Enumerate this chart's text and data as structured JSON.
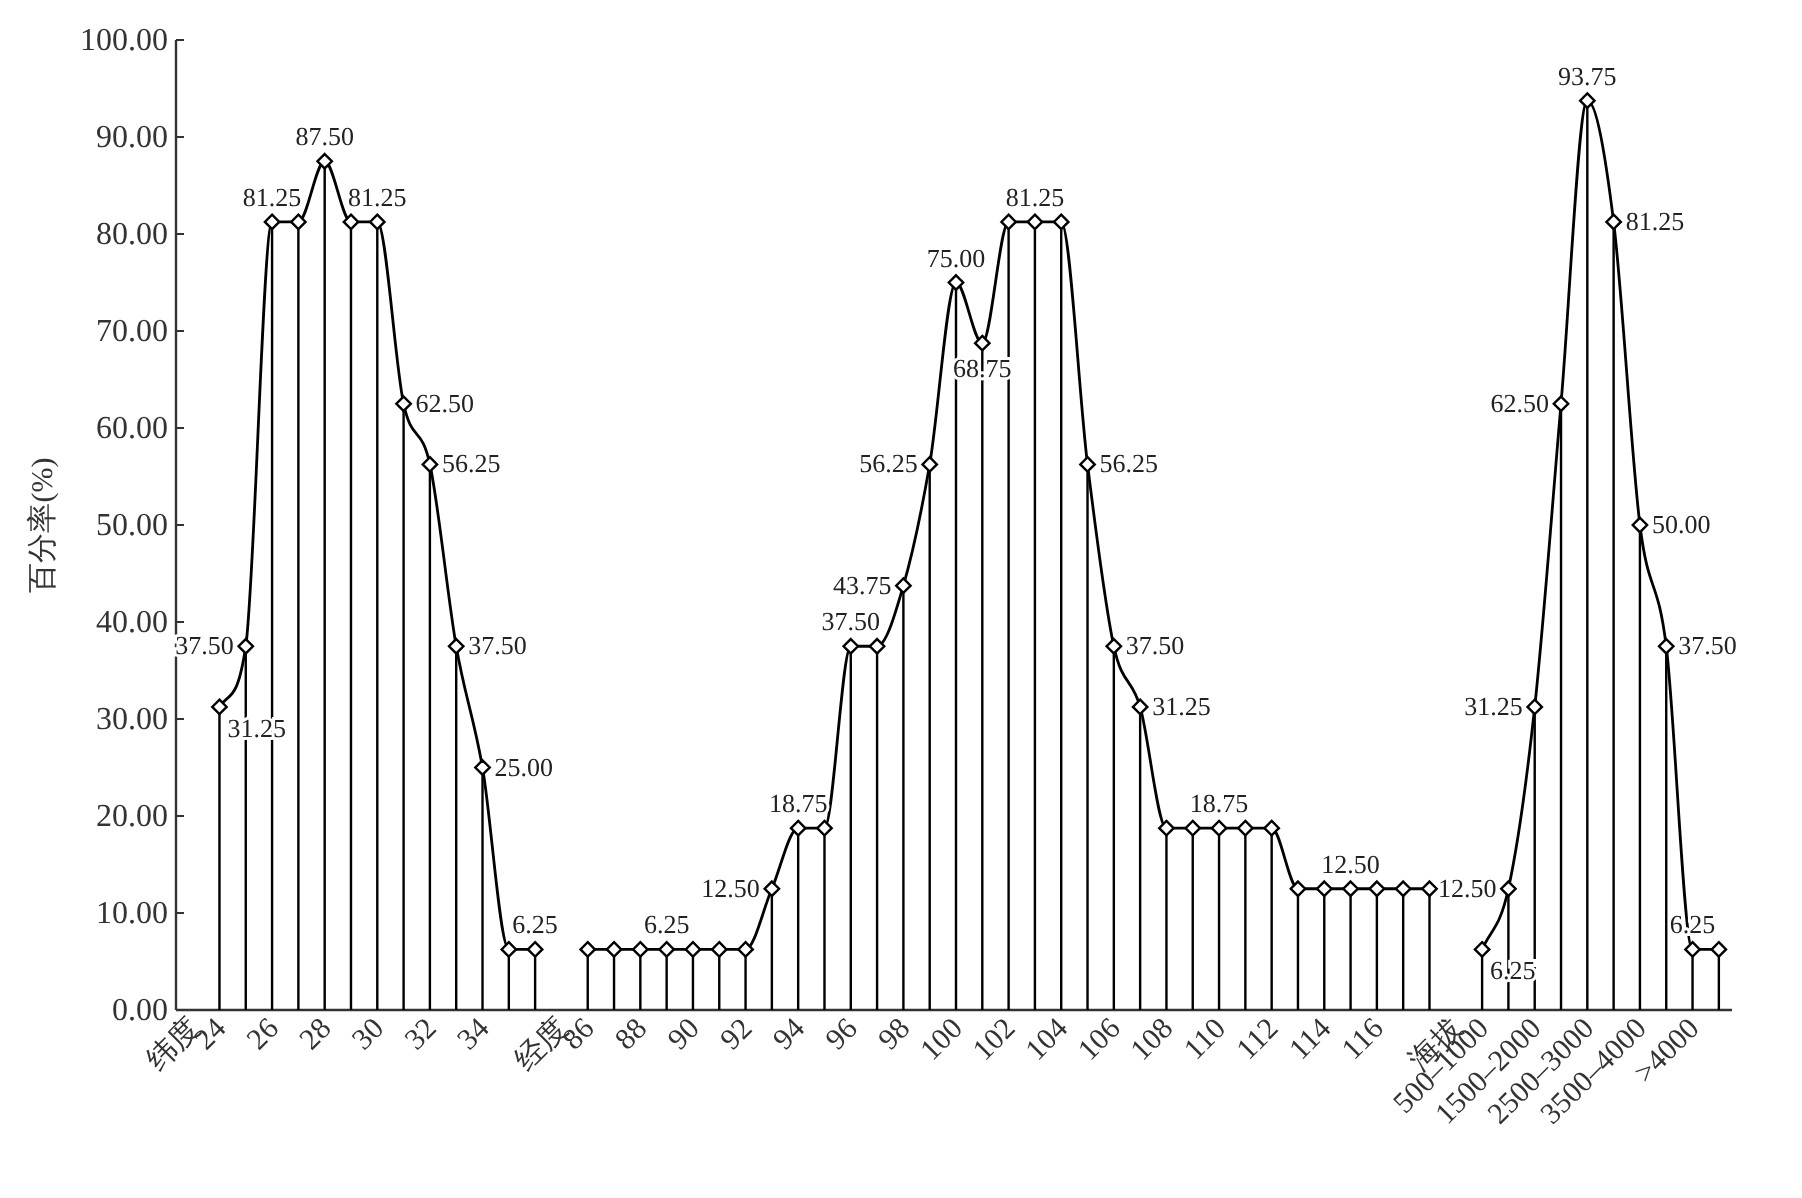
{
  "chart_data": {
    "type": "line",
    "ylabel": "百分率(%)",
    "categories": [
      "纬度",
      "24",
      null,
      "26",
      null,
      "28",
      null,
      "30",
      null,
      "32",
      null,
      "34",
      null,
      null,
      "经度",
      "86",
      null,
      "88",
      null,
      "90",
      null,
      "92",
      null,
      "94",
      null,
      "96",
      null,
      "98",
      null,
      "100",
      null,
      "102",
      null,
      "104",
      null,
      "106",
      null,
      "108",
      null,
      "110",
      null,
      "112",
      null,
      "114",
      null,
      "116",
      null,
      null,
      "海拔",
      "500–1000",
      null,
      "1500–2000",
      null,
      "2500–3000",
      null,
      "3500–4000",
      null,
      ">4000",
      null
    ],
    "series": [
      {
        "type": "bar",
        "color": "#000000",
        "values": [
          null,
          31.25,
          37.5,
          81.25,
          81.25,
          87.5,
          81.25,
          81.25,
          62.5,
          56.25,
          37.5,
          25,
          6.25,
          6.25,
          null,
          6.25,
          6.25,
          6.25,
          6.25,
          6.25,
          6.25,
          6.25,
          12.5,
          18.75,
          18.75,
          37.5,
          37.5,
          43.75,
          56.25,
          75,
          68.75,
          81.25,
          81.25,
          81.25,
          56.25,
          37.5,
          31.25,
          18.75,
          18.75,
          18.75,
          18.75,
          18.75,
          12.5,
          12.5,
          12.5,
          12.5,
          12.5,
          12.5,
          null,
          6.25,
          12.5,
          31.25,
          62.5,
          93.75,
          81.25,
          50,
          37.5,
          6.25,
          6.25
        ]
      },
      {
        "color": "#000000",
        "marker": "diamond",
        "values": [
          null,
          31.25,
          37.5,
          81.25,
          81.25,
          87.5,
          81.25,
          81.25,
          62.5,
          56.25,
          37.5,
          25,
          6.25,
          6.25,
          null,
          6.25,
          6.25,
          6.25,
          6.25,
          6.25,
          6.25,
          6.25,
          12.5,
          18.75,
          18.75,
          37.5,
          37.5,
          43.75,
          56.25,
          75,
          68.75,
          81.25,
          81.25,
          81.25,
          56.25,
          37.5,
          31.25,
          18.75,
          18.75,
          18.75,
          18.75,
          18.75,
          12.5,
          12.5,
          12.5,
          12.5,
          12.5,
          12.5,
          null,
          6.25,
          12.5,
          31.25,
          62.5,
          93.75,
          81.25,
          50,
          37.5,
          6.25,
          6.25
        ],
        "value_labels": [
          null,
          "31.25",
          "37.50",
          "81.25",
          null,
          "87.50",
          null,
          "81.25",
          "62.50",
          "56.25",
          "37.50",
          "25.00",
          null,
          "6.25",
          null,
          null,
          null,
          null,
          "6.25",
          null,
          null,
          null,
          "12.50",
          "18.75",
          null,
          "37.50",
          null,
          "43.75",
          "56.25",
          "75.00",
          "68.75",
          null,
          "81.25",
          null,
          "56.25",
          "37.50",
          "31.25",
          null,
          null,
          "18.75",
          null,
          null,
          null,
          null,
          "12.50",
          null,
          null,
          null,
          null,
          "6.25",
          "12.50",
          "31.25",
          "62.50",
          "93.75",
          "81.25",
          "50.00",
          "37.50",
          "6.25",
          null
        ]
      }
    ],
    "ylim": [
      0,
      100
    ],
    "yticks": [
      {
        "value": 0,
        "label": "0.00"
      },
      {
        "value": 10,
        "label": "10.00"
      },
      {
        "value": 20,
        "label": "20.00"
      },
      {
        "value": 30,
        "label": "30.00"
      },
      {
        "value": 40,
        "label": "40.00"
      },
      {
        "value": 50,
        "label": "50.00"
      },
      {
        "value": 60,
        "label": "60.00"
      },
      {
        "value": 70,
        "label": "70.00"
      },
      {
        "value": 80,
        "label": "80.00"
      },
      {
        "value": 90,
        "label": "90.00"
      },
      {
        "value": 100,
        "label": "100.00"
      }
    ],
    "line_style": "solid"
  }
}
